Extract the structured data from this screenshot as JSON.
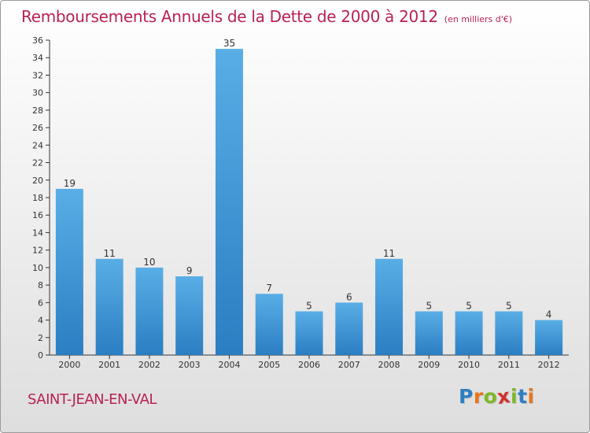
{
  "header": {
    "title": "Remboursements Annuels de la Dette de 2000 à 2012",
    "unit": "(en milliers d'€)"
  },
  "footer": {
    "commune": "SAINT-JEAN-EN-VAL",
    "logo_text": "Proxiti"
  },
  "colors": {
    "accent": "#b72251",
    "bar_top": "#5aaee6",
    "bar_bottom": "#2a7ec2"
  },
  "chart_data": {
    "type": "bar",
    "title": "Remboursements Annuels de la Dette de 2000 à 2012",
    "xlabel": "",
    "ylabel": "",
    "categories": [
      "2000",
      "2001",
      "2002",
      "2003",
      "2004",
      "2005",
      "2006",
      "2007",
      "2008",
      "2009",
      "2010",
      "2011",
      "2012"
    ],
    "values": [
      19,
      11,
      10,
      9,
      35,
      7,
      5,
      6,
      11,
      5,
      5,
      5,
      4
    ],
    "ylim": [
      0,
      36
    ],
    "yticks": [
      0,
      2,
      4,
      6,
      8,
      10,
      12,
      14,
      16,
      18,
      20,
      22,
      24,
      26,
      28,
      30,
      32,
      34,
      36
    ],
    "grid": false,
    "data_labels": true
  }
}
